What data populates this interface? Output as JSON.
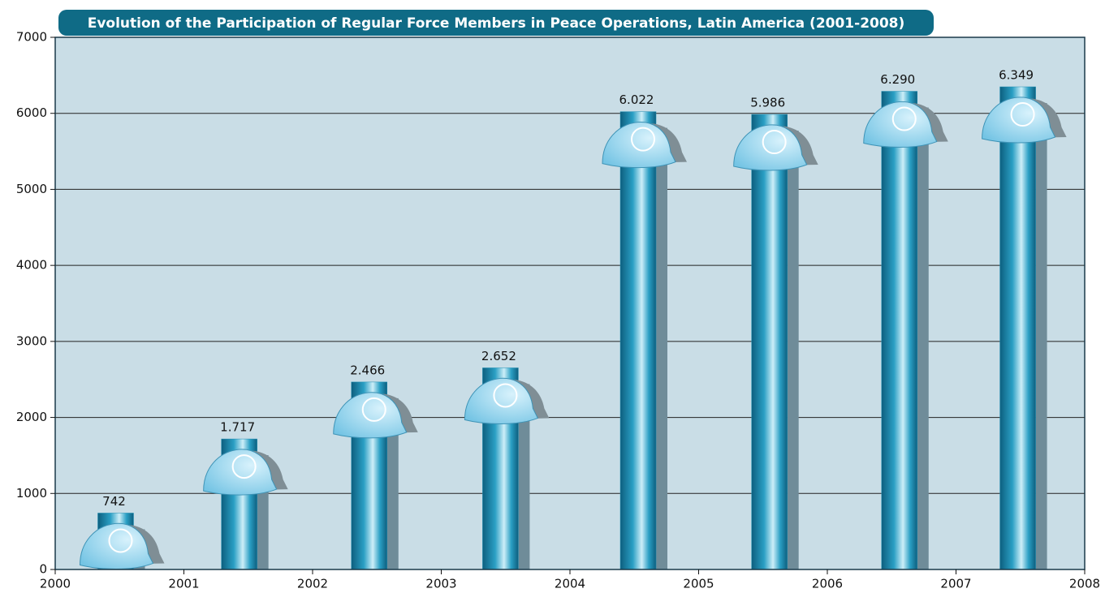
{
  "chart_data": {
    "type": "bar",
    "title": "Evolution of the Participation of Regular Force Members in Peace Operations, Latin America (2001-2008)",
    "x": [
      2000.47,
      2001.43,
      2002.44,
      2003.46,
      2004.53,
      2005.55,
      2006.56,
      2007.48
    ],
    "values": [
      742,
      1717,
      2466,
      2652,
      6022,
      5986,
      6290,
      6349
    ],
    "value_labels": [
      "742",
      "1.717",
      "2.466",
      "2.652",
      "6.022",
      "5.986",
      "6.290",
      "6.349"
    ],
    "color": "#1f8fb3",
    "xlim": [
      2000,
      2008
    ],
    "xticks": [
      2000,
      2001,
      2002,
      2003,
      2004,
      2005,
      2006,
      2007,
      2008
    ],
    "ylim": [
      0,
      7000
    ],
    "yticks": [
      0,
      1000,
      2000,
      3000,
      4000,
      5000,
      6000,
      7000
    ],
    "grid": true
  }
}
